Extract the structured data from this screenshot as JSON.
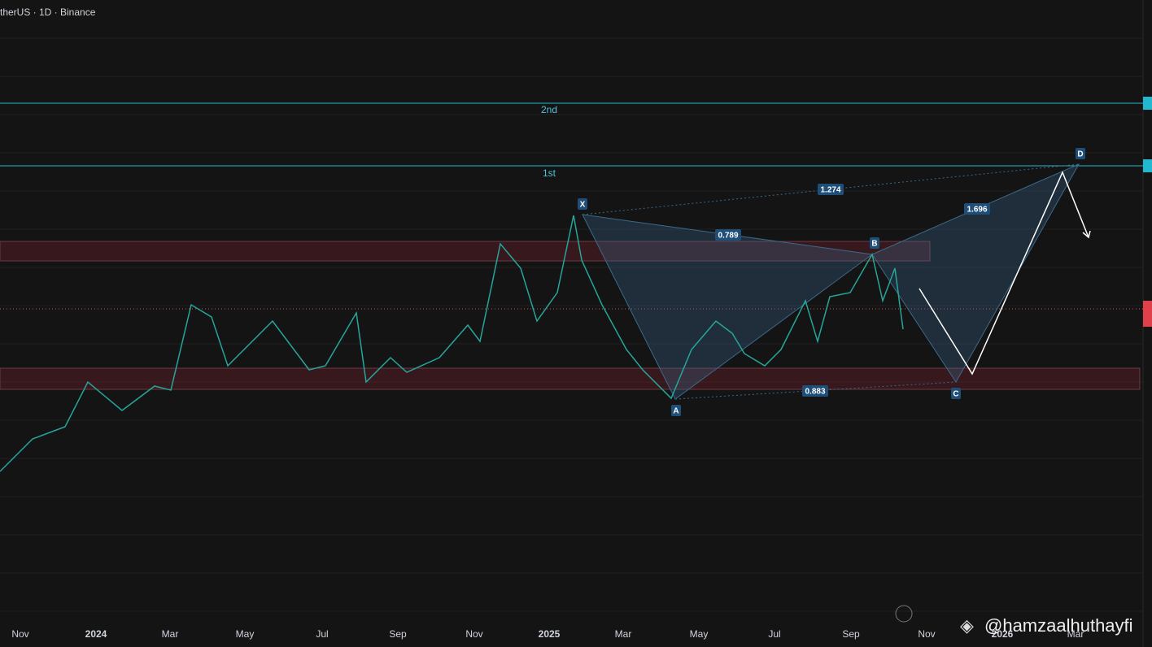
{
  "header": {
    "title": "therUS · 1D · Binance"
  },
  "time_axis": [
    "Nov",
    "2024",
    "Mar",
    "May",
    "Jul",
    "Sep",
    "Nov",
    "2025",
    "Mar",
    "May",
    "Jul",
    "Sep",
    "Nov",
    "2026",
    "Mar"
  ],
  "levels": [
    "2nd",
    "1st"
  ],
  "pattern": {
    "points": [
      "X",
      "A",
      "B",
      "C",
      "D"
    ],
    "ratios": [
      "0.789",
      "1.274",
      "0.883",
      "1.696"
    ]
  },
  "watermark": "@hamzaalhuthayfi"
}
